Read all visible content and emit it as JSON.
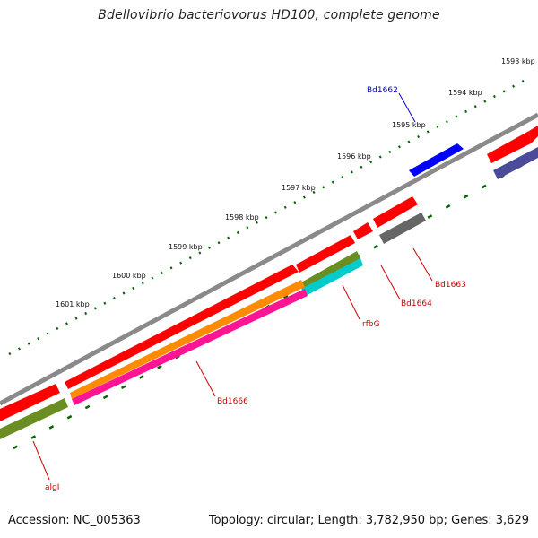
{
  "title": "Bdellovibrio bacteriovorus HD100, complete genome",
  "footer": {
    "accession": "Accession: NC_005363",
    "summary": "Topology: circular; Length: 3,782,950 bp; Genes: 3,629"
  },
  "ruler": {
    "labels": [
      "1593 kbp",
      "1594 kbp",
      "1595 kbp",
      "1596 kbp",
      "1597 kbp",
      "1598 kbp",
      "1599 kbp",
      "1600 kbp",
      "1601 kbp"
    ]
  },
  "gene_labels": {
    "bd1662": "Bd1662",
    "bd1663": "Bd1663",
    "bd1664": "Bd1664",
    "rfbg": "rfbG",
    "bd1666": "Bd1666",
    "algi": "algI"
  },
  "colors": {
    "forward_gene": "#ff0000",
    "highlight_gene": "#0000ff",
    "backbone": "#808080",
    "reverse_purple": "#4b4b9a",
    "reverse_gray": "#666666",
    "reverse_olive": "#6b8e23",
    "reverse_orange": "#ff8c00",
    "reverse_cyan": "#00cccc",
    "reverse_magenta": "#ff1493",
    "tick": "#006400",
    "label_red": "#cc0000",
    "label_blue": "#0000cc"
  }
}
